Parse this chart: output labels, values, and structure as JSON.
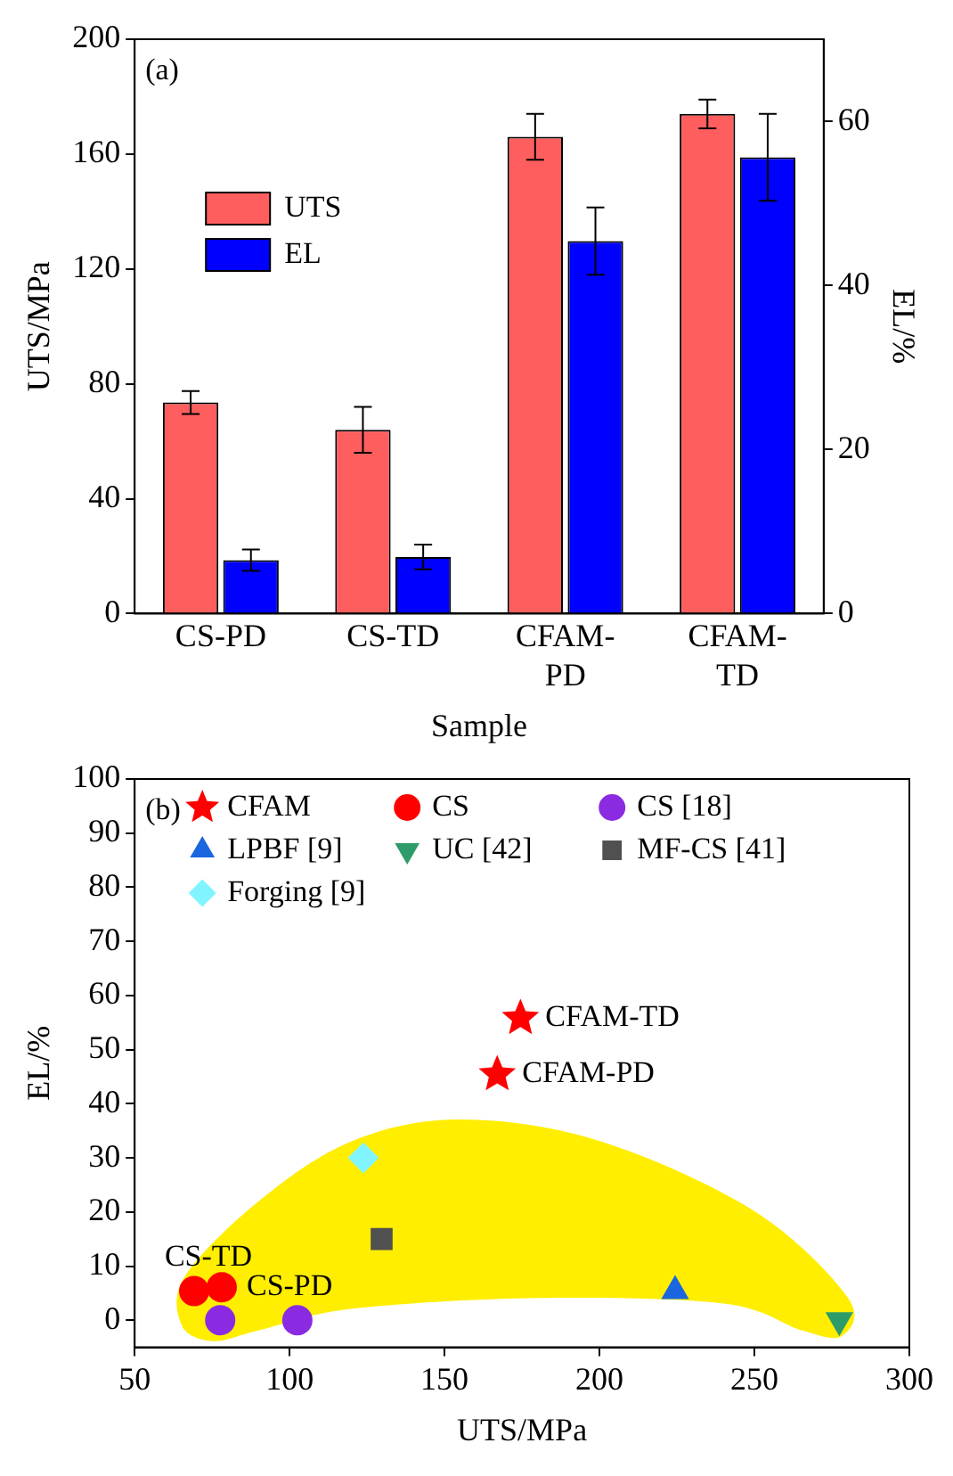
{
  "chart_data": [
    {
      "type": "bar",
      "categories": [
        "CS-PD",
        "CS-TD",
        "CFAM-PD",
        "CFAM-TD"
      ],
      "xlabel": "Sample",
      "ylabel": "UTS/MPa",
      "y2label": "EL/%",
      "ylim": [
        0,
        200
      ],
      "yticks": [
        0,
        40,
        80,
        120,
        160,
        200
      ],
      "y2lim": [
        0,
        70
      ],
      "y2ticks": [
        0,
        20,
        40,
        60
      ],
      "legend": "top left",
      "grid": false,
      "annotations": [
        "(a)"
      ],
      "series": [
        {
          "name": "UTS",
          "color": "#ff5e5e",
          "values": [
            73.5,
            64,
            166,
            174
          ],
          "errors": [
            4,
            8,
            8,
            5
          ]
        },
        {
          "name": "EL",
          "color": "#0000ff",
          "axis": "y2",
          "values": [
            6.5,
            6.9,
            45.4,
            55.6
          ],
          "errors": [
            1.3,
            1.5,
            4.1,
            5.3
          ]
        }
      ]
    },
    {
      "type": "scatter",
      "xlabel": "UTS/MPa",
      "ylabel": "EL/%",
      "xlim": [
        50,
        300
      ],
      "xticks": [
        50,
        100,
        150,
        200,
        250,
        300
      ],
      "ylim": [
        -5,
        100
      ],
      "yticks": [
        0,
        10,
        20,
        30,
        40,
        50,
        60,
        70,
        80,
        90,
        100
      ],
      "legend": "top",
      "grid": false,
      "annotations": [
        "(b)",
        {
          "text": "CS-TD",
          "x": 69.2,
          "y": 5.4
        },
        {
          "text": "CS-PD",
          "x": 78.1,
          "y": 6.1
        },
        {
          "text": "CFAM-TD",
          "x": 174.5,
          "y": 55.8
        },
        {
          "text": "CFAM-PD",
          "x": 167,
          "y": 45.4
        }
      ],
      "series": [
        {
          "name": "CFAM",
          "color": "#ff0000",
          "marker": "star",
          "x": [
            174.5,
            167
          ],
          "values": [
            55.8,
            45.4
          ]
        },
        {
          "name": "CS",
          "color": "#ff0000",
          "marker": "circle",
          "x": [
            69.2,
            78.1
          ],
          "values": [
            5.4,
            6.1
          ]
        },
        {
          "name": "CS [18]",
          "color": "#8a2be2",
          "marker": "circle",
          "x": [
            77.6,
            102.5
          ],
          "values": [
            0,
            0
          ]
        },
        {
          "name": "LPBF [9]",
          "color": "#1a66e0",
          "marker": "triangle",
          "x": [
            224.4
          ],
          "values": [
            5.4
          ]
        },
        {
          "name": "UC [42]",
          "color": "#2e9c6a",
          "marker": "triangle_down",
          "x": [
            277.4
          ],
          "values": [
            0
          ]
        },
        {
          "name": "MF-CS [41]",
          "color": "#505050",
          "marker": "square",
          "x": [
            129.7
          ],
          "values": [
            15
          ]
        },
        {
          "name": "Forging [9]",
          "color": "#80f5ff",
          "marker": "diamond",
          "x": [
            123.8
          ],
          "values": [
            30
          ]
        }
      ]
    }
  ]
}
